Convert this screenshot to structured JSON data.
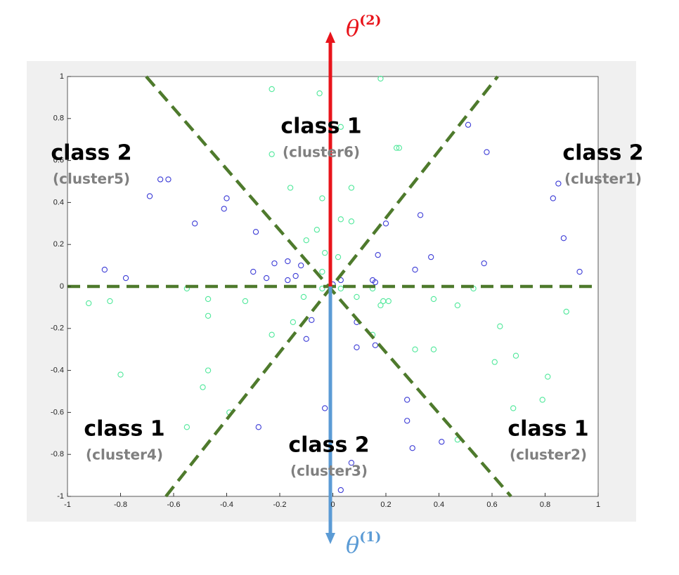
{
  "chart_data": {
    "type": "scatter",
    "xlim": [
      -1,
      1
    ],
    "ylim": [
      -1,
      1
    ],
    "xticks": [
      -1,
      -0.8,
      -0.6,
      -0.4,
      -0.2,
      0,
      0.2,
      0.4,
      0.6,
      0.8,
      1
    ],
    "yticks": [
      -1,
      -0.8,
      -0.6,
      -0.4,
      -0.2,
      0,
      0.2,
      0.4,
      0.6,
      0.8,
      1
    ],
    "series": [
      {
        "color": "#3b3bd6",
        "x": [
          -0.86,
          -0.78,
          -0.69,
          -0.65,
          -0.62,
          -0.52,
          -0.41,
          -0.4,
          -0.29,
          -0.3,
          -0.25,
          -0.22,
          -0.17,
          -0.17,
          -0.14,
          -0.12,
          -0.08,
          -0.1,
          -0.28,
          -0.03,
          0.0,
          0.03,
          0.09,
          0.09,
          0.07,
          0.03,
          0.15,
          0.16,
          0.16,
          0.17,
          0.2,
          0.28,
          0.28,
          0.31,
          0.3,
          0.33,
          0.37,
          0.41,
          0.51,
          0.58,
          0.57,
          0.83,
          0.85,
          0.87,
          0.93
        ],
        "values": [
          0.08,
          0.04,
          0.43,
          0.51,
          0.51,
          0.3,
          0.37,
          0.42,
          0.26,
          0.07,
          0.04,
          0.11,
          0.12,
          0.03,
          0.05,
          0.1,
          -0.16,
          -0.25,
          -0.67,
          -0.58,
          0.01,
          0.03,
          -0.17,
          -0.29,
          -0.84,
          -0.97,
          0.03,
          0.02,
          -0.28,
          0.15,
          0.3,
          -0.54,
          -0.64,
          0.08,
          -0.77,
          0.34,
          0.14,
          -0.74,
          0.77,
          0.64,
          0.11,
          0.42,
          0.49,
          0.23,
          0.07
        ]
      },
      {
        "color": "#4fe89a",
        "x": [
          -0.92,
          -0.84,
          -0.8,
          -0.55,
          -0.47,
          -0.47,
          -0.47,
          -0.49,
          -0.39,
          -0.55,
          -0.33,
          -0.23,
          -0.15,
          -0.11,
          -0.1,
          -0.06,
          -0.04,
          -0.16,
          -0.23,
          -0.23,
          -0.05,
          -0.03,
          -0.04,
          -0.04,
          0.02,
          0.03,
          0.03,
          0.07,
          0.07,
          0.03,
          0.09,
          0.15,
          0.15,
          0.18,
          0.18,
          0.19,
          0.21,
          0.24,
          0.25,
          0.31,
          0.38,
          0.38,
          0.47,
          0.53,
          0.47,
          0.63,
          0.61,
          0.69,
          0.81,
          0.79,
          0.68,
          0.88
        ],
        "values": [
          -0.08,
          -0.07,
          -0.42,
          -0.01,
          -0.06,
          -0.14,
          -0.4,
          -0.48,
          -0.6,
          -0.67,
          -0.07,
          -0.23,
          -0.17,
          -0.05,
          0.22,
          0.27,
          0.42,
          0.47,
          0.63,
          0.94,
          0.92,
          0.16,
          0.07,
          -0.01,
          0.14,
          0.32,
          0.76,
          0.47,
          0.31,
          -0.01,
          -0.05,
          -0.01,
          -0.23,
          0.99,
          -0.09,
          -0.07,
          -0.07,
          0.66,
          0.66,
          -0.3,
          -0.06,
          -0.3,
          -0.09,
          -0.01,
          -0.73,
          -0.19,
          -0.36,
          -0.33,
          -0.43,
          -0.54,
          -0.58,
          -0.12
        ]
      }
    ],
    "annotations": [
      {
        "text": "class 1",
        "note": "(cluster6)"
      },
      {
        "text": "class 2",
        "note": "(cluster5)"
      },
      {
        "text": "class 2",
        "note": "(cluster1)"
      },
      {
        "text": "class 1",
        "note": "(cluster4)"
      },
      {
        "text": "class 2",
        "note": "(cluster3)"
      },
      {
        "text": "class 1",
        "note": "(cluster2)"
      }
    ],
    "arrows": [
      {
        "symbol": "θ",
        "superscript": "(2)",
        "color": "#e8141b"
      },
      {
        "symbol": "θ",
        "superscript": "(1)",
        "color": "#5b9bd5"
      }
    ]
  }
}
